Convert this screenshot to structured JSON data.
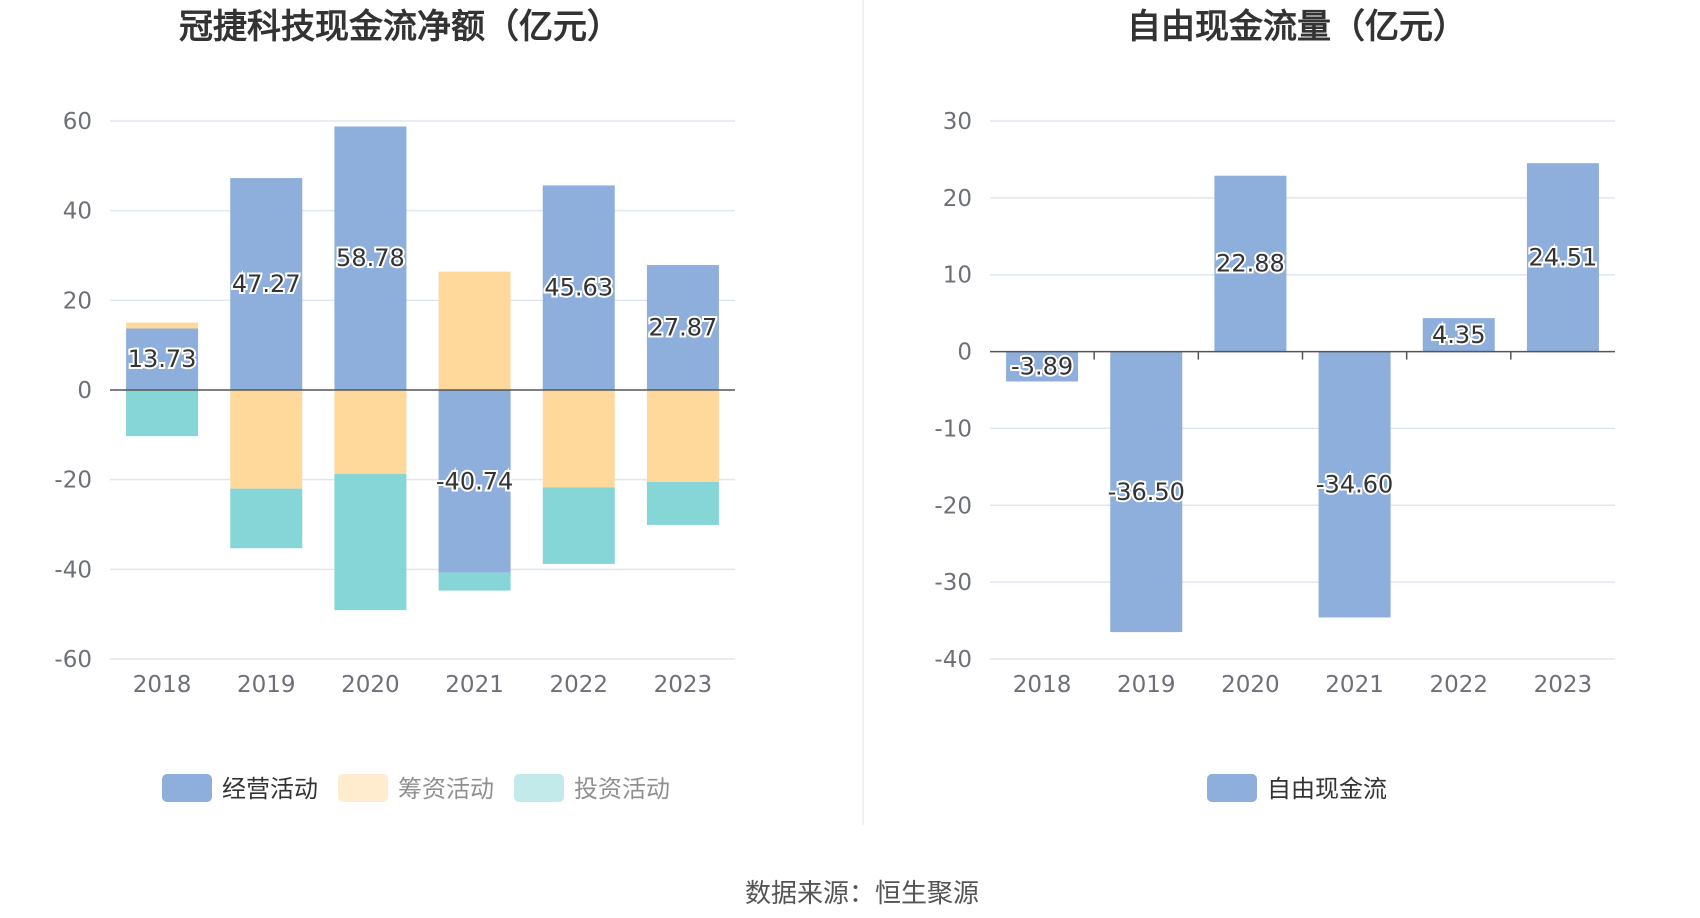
{
  "colors": {
    "operating": "#8eaedb",
    "financing": "#ffd89b",
    "investing": "#86d6d8",
    "fcf": "#8eaedb"
  },
  "source_text": "数据来源：恒生聚源",
  "chart_data": [
    {
      "type": "bar",
      "stacked": true,
      "title": "冠捷科技现金流净额（亿元）",
      "categories": [
        "2018",
        "2019",
        "2020",
        "2021",
        "2022",
        "2023"
      ],
      "ylim": [
        -60,
        60
      ],
      "yticks": [
        60,
        40,
        20,
        0,
        -20,
        -40,
        -60
      ],
      "grid": true,
      "legend_position": "bottom",
      "series": [
        {
          "name": "经营活动",
          "color_key": "operating",
          "values": [
            13.73,
            47.27,
            58.78,
            -40.74,
            45.63,
            27.87
          ],
          "labels": [
            "13.73",
            "47.27",
            "58.78",
            "-40.74",
            "45.63",
            "27.87"
          ]
        },
        {
          "name": "筹资活动",
          "color_key": "financing",
          "values": [
            1.3,
            -22.0,
            -18.7,
            26.4,
            -21.7,
            -20.5
          ]
        },
        {
          "name": "投资活动",
          "color_key": "investing",
          "values": [
            -10.3,
            -13.3,
            -30.4,
            -4.0,
            -17.1,
            -9.6
          ]
        }
      ]
    },
    {
      "type": "bar",
      "title": "自由现金流量（亿元）",
      "categories": [
        "2018",
        "2019",
        "2020",
        "2021",
        "2022",
        "2023"
      ],
      "ylim": [
        -40,
        30
      ],
      "yticks": [
        30,
        20,
        10,
        0,
        -10,
        -20,
        -30,
        -40
      ],
      "grid": true,
      "legend_position": "bottom",
      "series": [
        {
          "name": "自由现金流",
          "color_key": "fcf",
          "values": [
            -3.89,
            -36.5,
            22.88,
            -34.6,
            4.35,
            24.51
          ],
          "labels": [
            "-3.89",
            "-36.50",
            "22.88",
            "-34.60",
            "4.35",
            "24.51"
          ]
        }
      ]
    }
  ]
}
